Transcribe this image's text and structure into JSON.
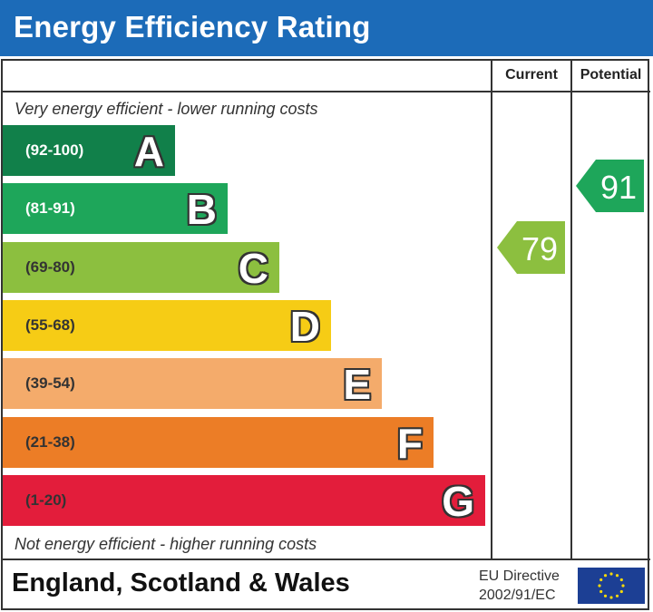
{
  "header": {
    "title": "Energy Efficiency Rating"
  },
  "columns": {
    "current": "Current",
    "potential": "Potential"
  },
  "captions": {
    "top": "Very energy efficient - lower running costs",
    "bottom": "Not energy efficient - higher running costs"
  },
  "bands": [
    {
      "range": "(92-100)",
      "letter": "A",
      "color": "#11804a",
      "range_color": "#ffffff"
    },
    {
      "range": "(81-91)",
      "letter": "B",
      "color": "#1ea65a",
      "range_color": "#ffffff"
    },
    {
      "range": "(69-80)",
      "letter": "C",
      "color": "#8cbf3f",
      "range_color": "#333333"
    },
    {
      "range": "(55-68)",
      "letter": "D",
      "color": "#f6cc15",
      "range_color": "#333333"
    },
    {
      "range": "(39-54)",
      "letter": "E",
      "color": "#f4ab6b",
      "range_color": "#333333"
    },
    {
      "range": "(21-38)",
      "letter": "F",
      "color": "#ec7d26",
      "range_color": "#333333"
    },
    {
      "range": "(1-20)",
      "letter": "G",
      "color": "#e31d3b",
      "range_color": "#333333"
    }
  ],
  "current_rating": {
    "value": "79",
    "band": "C",
    "color": "#8cbf3f"
  },
  "potential_rating": {
    "value": "91",
    "band": "B",
    "color": "#1ea65a"
  },
  "footer": {
    "region": "England, Scotland & Wales",
    "directive_line1": "EU Directive",
    "directive_line2": "2002/91/EC"
  }
}
